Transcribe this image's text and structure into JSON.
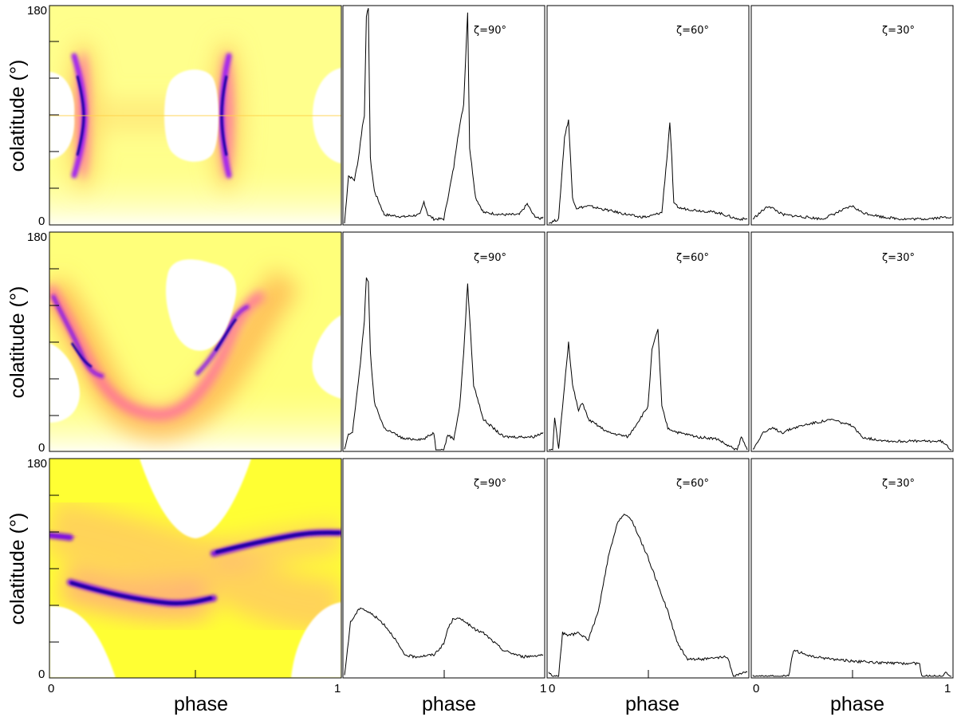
{
  "figure": {
    "ylabel": "colatitude (°)",
    "xlabel": "phase",
    "y_ticks": [
      "0",
      "180"
    ],
    "x_ticks": [
      "0",
      "1"
    ]
  },
  "chart_data": [
    {
      "type": "heatmap",
      "row": 0,
      "xlabel": "phase",
      "ylabel": "colatitude (°)",
      "xlim": [
        0,
        1
      ],
      "ylim": [
        0,
        180
      ],
      "colormap": [
        "#ffffff",
        "#ffff66",
        "#ffb060",
        "#ff4aa0",
        "#9a1cf0",
        "#1a00a0"
      ],
      "features": [
        {
          "kind": "ridge",
          "phase": 0.12,
          "colatitude": [
            40,
            140
          ],
          "peak_at": 90
        },
        {
          "kind": "ridge",
          "phase": 0.62,
          "colatitude": [
            40,
            140
          ],
          "peak_at": 90
        }
      ]
    },
    {
      "type": "line",
      "row": 0,
      "label": "ζ=90°",
      "xlim": [
        0,
        1
      ],
      "x": [
        0,
        0.02,
        0.05,
        0.07,
        0.09,
        0.1,
        0.11,
        0.12,
        0.13,
        0.15,
        0.2,
        0.3,
        0.38,
        0.4,
        0.42,
        0.45,
        0.5,
        0.55,
        0.57,
        0.58,
        0.6,
        0.62,
        0.63,
        0.66,
        0.7,
        0.8,
        0.88,
        0.92,
        0.95,
        0.98,
        1
      ],
      "y": [
        0.0,
        0.22,
        0.2,
        0.3,
        0.45,
        0.5,
        0.95,
        1.0,
        0.3,
        0.15,
        0.04,
        0.03,
        0.04,
        0.1,
        0.04,
        0.02,
        0.02,
        0.26,
        0.4,
        0.45,
        0.55,
        0.98,
        0.35,
        0.12,
        0.05,
        0.04,
        0.04,
        0.09,
        0.04,
        0.02,
        0.03
      ]
    },
    {
      "type": "line",
      "row": 0,
      "label": "ζ=60°",
      "xlim": [
        0,
        1
      ],
      "x": [
        0,
        0.05,
        0.08,
        0.1,
        0.12,
        0.14,
        0.2,
        0.3,
        0.4,
        0.45,
        0.5,
        0.57,
        0.6,
        0.61,
        0.62,
        0.63,
        0.66,
        0.75,
        0.85,
        0.95,
        1
      ],
      "y": [
        0.0,
        0.02,
        0.4,
        0.48,
        0.12,
        0.07,
        0.08,
        0.06,
        0.04,
        0.03,
        0.03,
        0.05,
        0.35,
        0.47,
        0.3,
        0.09,
        0.07,
        0.06,
        0.05,
        0.02,
        0.02
      ]
    },
    {
      "type": "line",
      "row": 0,
      "label": "ζ=30°",
      "xlim": [
        0,
        1
      ],
      "x": [
        0,
        0.05,
        0.08,
        0.1,
        0.15,
        0.25,
        0.35,
        0.45,
        0.5,
        0.55,
        0.65,
        0.75,
        0.85,
        1
      ],
      "y": [
        0.02,
        0.06,
        0.08,
        0.07,
        0.04,
        0.03,
        0.02,
        0.06,
        0.08,
        0.05,
        0.03,
        0.02,
        0.02,
        0.03
      ]
    },
    {
      "type": "heatmap",
      "row": 1,
      "xlabel": "phase",
      "ylabel": "colatitude (°)",
      "xlim": [
        0,
        1
      ],
      "ylim": [
        0,
        180
      ],
      "colormap": [
        "#ffffff",
        "#ffff66",
        "#ffb060",
        "#ff4aa0",
        "#9a1cf0",
        "#1a00a0"
      ],
      "features": [
        {
          "kind": "arc",
          "phase": [
            0,
            0.15
          ],
          "colatitude": [
            130,
            70
          ]
        },
        {
          "kind": "arc",
          "phase": [
            0.45,
            0.7
          ],
          "colatitude": [
            30,
            110
          ]
        }
      ]
    },
    {
      "type": "line",
      "row": 1,
      "label": "ζ=90°",
      "xlim": [
        0,
        1
      ],
      "x": [
        0,
        0.02,
        0.04,
        0.08,
        0.1,
        0.11,
        0.12,
        0.13,
        0.15,
        0.2,
        0.3,
        0.4,
        0.45,
        0.46,
        0.5,
        0.52,
        0.55,
        0.58,
        0.6,
        0.62,
        0.65,
        0.7,
        0.8,
        0.95,
        1
      ],
      "y": [
        0.0,
        0.07,
        0.08,
        0.4,
        0.6,
        0.8,
        0.78,
        0.45,
        0.22,
        0.1,
        0.05,
        0.05,
        0.08,
        0.0,
        0.0,
        0.07,
        0.05,
        0.2,
        0.45,
        0.77,
        0.3,
        0.14,
        0.06,
        0.06,
        0.08
      ]
    },
    {
      "type": "line",
      "row": 1,
      "label": "ζ=60°",
      "xlim": [
        0,
        1
      ],
      "x": [
        0,
        0.02,
        0.03,
        0.05,
        0.1,
        0.12,
        0.15,
        0.17,
        0.2,
        0.3,
        0.4,
        0.5,
        0.52,
        0.55,
        0.57,
        0.6,
        0.65,
        0.75,
        0.85,
        0.9,
        0.95,
        0.97,
        1
      ],
      "y": [
        0.0,
        0.0,
        0.15,
        0.0,
        0.5,
        0.3,
        0.18,
        0.22,
        0.14,
        0.08,
        0.06,
        0.2,
        0.46,
        0.56,
        0.2,
        0.1,
        0.08,
        0.06,
        0.05,
        0.02,
        0.0,
        0.06,
        0.0
      ]
    },
    {
      "type": "line",
      "row": 1,
      "label": "ζ=30°",
      "xlim": [
        0,
        1
      ],
      "x": [
        0,
        0.05,
        0.08,
        0.1,
        0.15,
        0.2,
        0.28,
        0.4,
        0.5,
        0.55,
        0.6,
        0.7,
        0.8,
        0.95,
        1
      ],
      "y": [
        0.0,
        0.08,
        0.09,
        0.1,
        0.08,
        0.1,
        0.12,
        0.14,
        0.11,
        0.06,
        0.05,
        0.04,
        0.04,
        0.04,
        0.0
      ]
    },
    {
      "type": "heatmap",
      "row": 2,
      "xlabel": "phase",
      "ylabel": "colatitude (°)",
      "xlim": [
        0,
        1
      ],
      "ylim": [
        0,
        180
      ],
      "colormap": [
        "#ffffff",
        "#ffff66",
        "#ffb060",
        "#ff4aa0",
        "#9a1cf0",
        "#1a00a0"
      ],
      "features": [
        {
          "kind": "band",
          "phase": [
            0.05,
            0.55
          ],
          "colatitude": [
            80,
            65
          ]
        },
        {
          "kind": "band",
          "phase": [
            0.55,
            1.0
          ],
          "colatitude": [
            110,
            120
          ]
        }
      ]
    },
    {
      "type": "line",
      "row": 2,
      "label": "ζ=90°",
      "xlim": [
        0,
        1
      ],
      "x": [
        0,
        0.03,
        0.08,
        0.15,
        0.2,
        0.25,
        0.3,
        0.35,
        0.45,
        0.5,
        0.52,
        0.55,
        0.6,
        0.65,
        0.7,
        0.8,
        0.9,
        1
      ],
      "y": [
        0.0,
        0.25,
        0.32,
        0.28,
        0.24,
        0.18,
        0.1,
        0.09,
        0.1,
        0.15,
        0.22,
        0.27,
        0.26,
        0.22,
        0.2,
        0.12,
        0.09,
        0.1
      ]
    },
    {
      "type": "line",
      "row": 2,
      "label": "ζ=60°",
      "xlim": [
        0,
        1
      ],
      "x": [
        0,
        0.02,
        0.05,
        0.07,
        0.1,
        0.15,
        0.2,
        0.25,
        0.3,
        0.35,
        0.38,
        0.42,
        0.5,
        0.6,
        0.65,
        0.7,
        0.8,
        0.9,
        0.93,
        0.96,
        1
      ],
      "y": [
        0.02,
        0.0,
        0.0,
        0.2,
        0.19,
        0.2,
        0.17,
        0.3,
        0.55,
        0.72,
        0.75,
        0.72,
        0.55,
        0.3,
        0.15,
        0.08,
        0.08,
        0.09,
        0.0,
        0.01,
        0.02
      ]
    },
    {
      "type": "line",
      "row": 2,
      "label": "ζ=30°",
      "xlim": [
        0,
        1
      ],
      "x": [
        0,
        0.18,
        0.2,
        0.21,
        0.3,
        0.5,
        0.7,
        0.84,
        0.85,
        0.86,
        0.9,
        0.95,
        0.97,
        1
      ],
      "y": [
        0.0,
        0.0,
        0.1,
        0.12,
        0.09,
        0.07,
        0.06,
        0.06,
        0.0,
        0.0,
        0.0,
        0.0,
        0.02,
        0.0
      ]
    }
  ]
}
